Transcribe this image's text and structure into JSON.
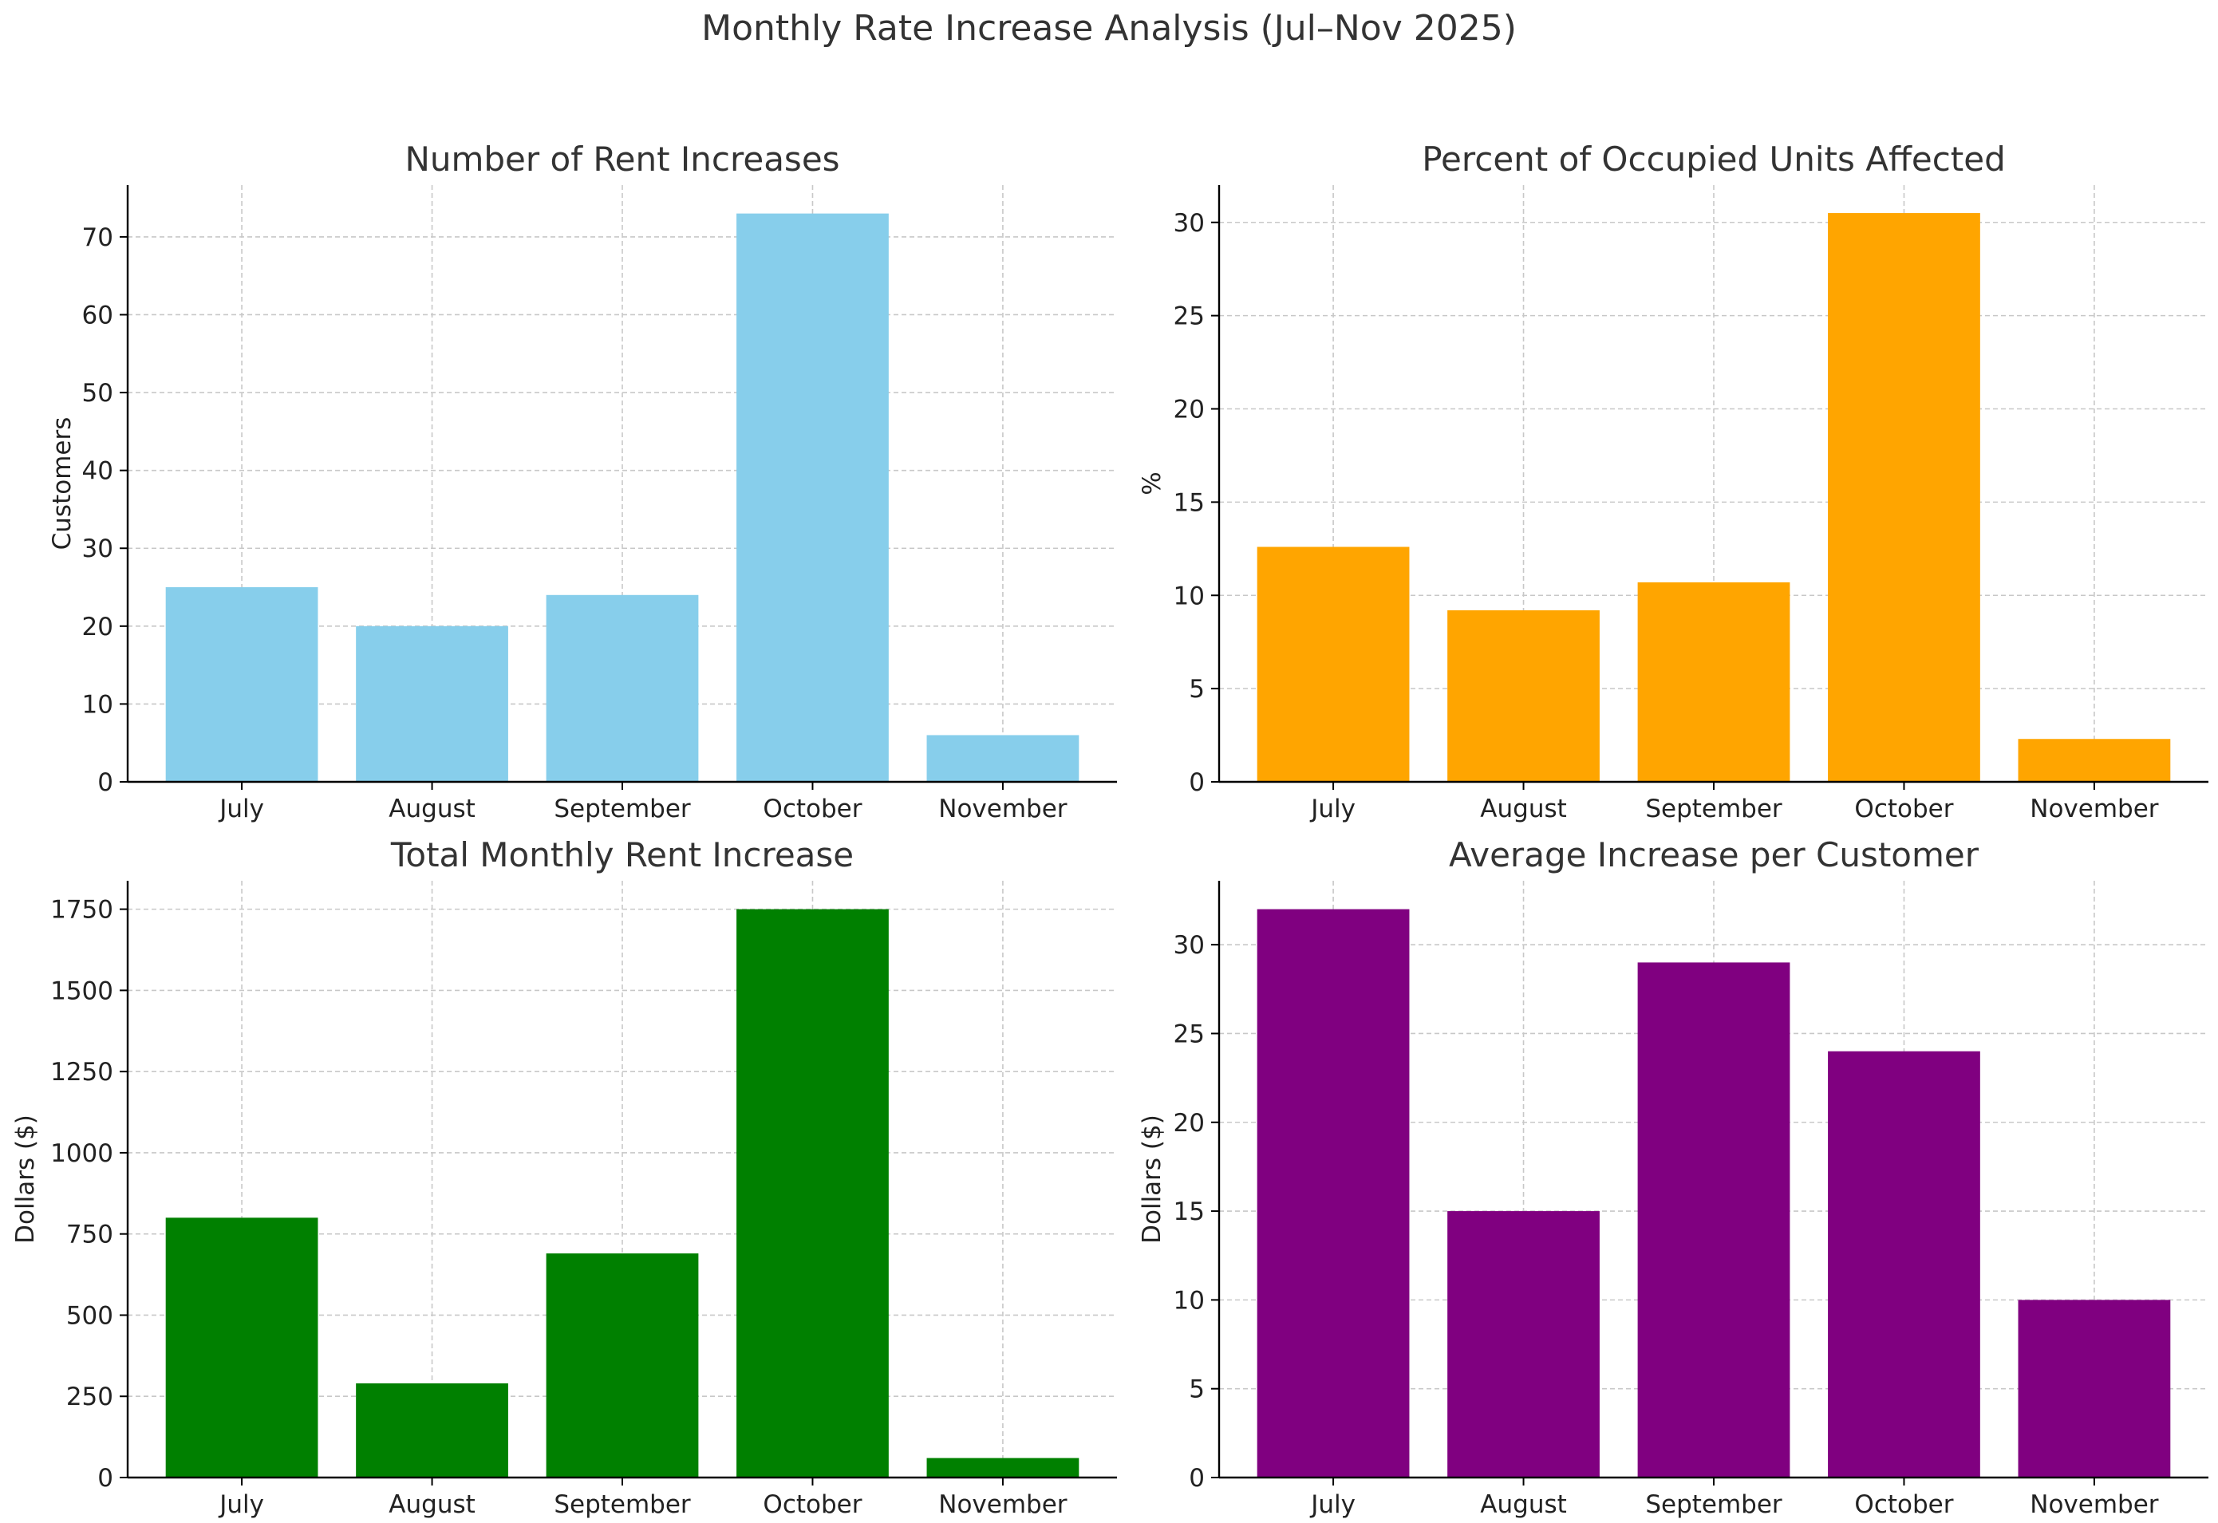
{
  "figure": {
    "title": "Monthly Rate Increase Analysis (Jul–Nov 2025)"
  },
  "chart_data": [
    {
      "type": "bar",
      "title": "Number of Rent Increases",
      "xlabel": "",
      "ylabel": "Customers",
      "categories": [
        "July",
        "August",
        "September",
        "October",
        "November"
      ],
      "values": [
        25,
        20,
        24,
        73,
        6
      ],
      "ylim": [
        0,
        76.65
      ],
      "yticks": [
        0,
        10,
        20,
        30,
        40,
        50,
        60,
        70
      ],
      "color": "#87CEEB",
      "grid": true
    },
    {
      "type": "bar",
      "title": "Percent of Occupied Units Affected",
      "xlabel": "",
      "ylabel": "%",
      "categories": [
        "July",
        "August",
        "September",
        "October",
        "November"
      ],
      "values": [
        12.6,
        9.2,
        10.7,
        30.5,
        2.3
      ],
      "ylim": [
        0,
        32.0
      ],
      "yticks": [
        0,
        5,
        10,
        15,
        20,
        25,
        30
      ],
      "color": "#FFA500",
      "grid": true
    },
    {
      "type": "bar",
      "title": "Total Monthly Rent Increase",
      "xlabel": "",
      "ylabel": "Dollars ($)",
      "categories": [
        "July",
        "August",
        "September",
        "October",
        "November"
      ],
      "values": [
        800,
        290,
        690,
        1750,
        60
      ],
      "ylim": [
        0,
        1837.5
      ],
      "yticks": [
        0,
        250,
        500,
        750,
        1000,
        1250,
        1500,
        1750
      ],
      "color": "#008000",
      "grid": true
    },
    {
      "type": "bar",
      "title": "Average Increase per Customer",
      "xlabel": "",
      "ylabel": "Dollars ($)",
      "categories": [
        "July",
        "August",
        "September",
        "October",
        "November"
      ],
      "values": [
        32,
        15,
        29,
        24,
        10
      ],
      "ylim": [
        0,
        33.6
      ],
      "yticks": [
        0,
        5,
        10,
        15,
        20,
        25,
        30
      ],
      "color": "#800080",
      "grid": true
    }
  ]
}
